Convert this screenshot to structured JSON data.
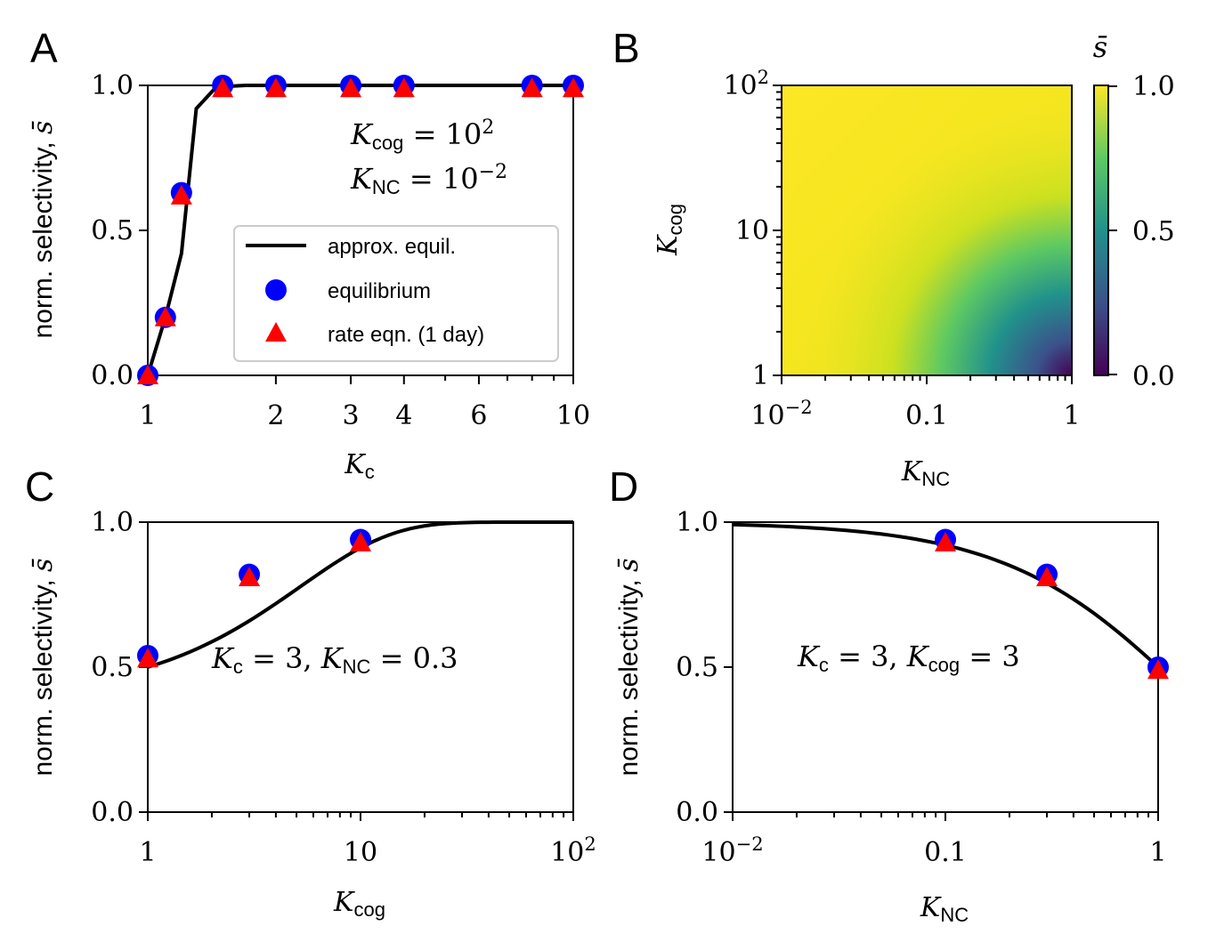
{
  "figure": {
    "panels": [
      "A",
      "B",
      "C",
      "D"
    ]
  },
  "chart_data": [
    {
      "panel": "A",
      "type": "line",
      "xlabel": "K_c",
      "ylabel": "norm. selectivity, s̄",
      "xscale": "log",
      "xlim": [
        1,
        10
      ],
      "ylim": [
        0,
        1
      ],
      "xticks": [
        1,
        2,
        3,
        4,
        6,
        10
      ],
      "xticklabels": [
        "1",
        "2",
        "3",
        "4",
        "6",
        "10"
      ],
      "yticks": [
        0,
        0.5,
        1.0
      ],
      "yticklabels": [
        "0.0",
        "0.5",
        "1.0"
      ],
      "annotations": [
        "K_cog = 10^2",
        "K_NC = 10^−2"
      ],
      "legend_position": "lower-right",
      "series": [
        {
          "name": "approx. equil.",
          "kind": "line",
          "color": "#000000",
          "x": [
            1,
            1.1,
            1.2,
            1.3,
            1.45,
            1.7,
            2,
            3,
            4,
            6,
            8,
            10
          ],
          "y": [
            0,
            0.2,
            0.42,
            0.92,
            0.995,
            1.0,
            1.0,
            1.0,
            1.0,
            1.0,
            1.0,
            1.0
          ]
        },
        {
          "name": "equilibrium",
          "kind": "circle",
          "color": "#0000ff",
          "x": [
            1,
            1.1,
            1.2,
            1.5,
            2,
            3,
            4,
            8,
            10
          ],
          "y": [
            0,
            0.2,
            0.63,
            1.0,
            1.0,
            1.0,
            1.0,
            1.0,
            1.0
          ]
        },
        {
          "name": "rate eqn. (1 day)",
          "kind": "triangle",
          "color": "#ff0000",
          "x": [
            1,
            1.1,
            1.2,
            1.5,
            2,
            3,
            4,
            8,
            10
          ],
          "y": [
            0,
            0.2,
            0.62,
            0.99,
            0.99,
            0.99,
            0.99,
            0.99,
            0.99
          ]
        }
      ]
    },
    {
      "panel": "B",
      "type": "heatmap",
      "xlabel": "K_NC",
      "ylabel": "K_cog",
      "xscale": "log",
      "yscale": "log",
      "xlim": [
        0.01,
        1
      ],
      "ylim": [
        1,
        100
      ],
      "xticklabels": [
        "10^−2",
        "0.1",
        "1"
      ],
      "yticklabels": [
        "1",
        "10",
        "10^2"
      ],
      "colorbar": {
        "label": "s̄",
        "range": [
          0,
          1
        ],
        "ticklabels": [
          "0.0",
          "0.5",
          "1.0"
        ],
        "colormap": "viridis"
      }
    },
    {
      "panel": "C",
      "type": "line",
      "xlabel": "K_cog",
      "ylabel": "norm. selectivity, s̄",
      "xscale": "log",
      "xlim": [
        1,
        100
      ],
      "ylim": [
        0,
        1
      ],
      "xticklabels": [
        "1",
        "10",
        "10^2"
      ],
      "yticklabels": [
        "0.0",
        "0.5",
        "1.0"
      ],
      "annotation": "K_c = 3, K_NC = 0.3",
      "series": [
        {
          "name": "approx. equil.",
          "kind": "curve",
          "color": "#000000"
        },
        {
          "name": "equilibrium",
          "kind": "circle",
          "color": "#0000ff",
          "x": [
            1,
            3,
            10
          ],
          "y": [
            0.54,
            0.82,
            0.94
          ]
        },
        {
          "name": "rate eqn. (1 day)",
          "kind": "triangle",
          "color": "#ff0000",
          "x": [
            1,
            3,
            10
          ],
          "y": [
            0.53,
            0.81,
            0.93
          ]
        }
      ]
    },
    {
      "panel": "D",
      "type": "line",
      "xlabel": "K_NC",
      "ylabel": "norm. selectivity, s̄",
      "xscale": "log",
      "xlim": [
        0.01,
        1
      ],
      "ylim": [
        0,
        1
      ],
      "xticklabels": [
        "10^−2",
        "0.1",
        "1"
      ],
      "yticklabels": [
        "0.0",
        "0.5",
        "1.0"
      ],
      "annotation": "K_c = 3, K_cog = 3",
      "series": [
        {
          "name": "approx. equil.",
          "kind": "curve",
          "color": "#000000"
        },
        {
          "name": "equilibrium",
          "kind": "circle",
          "color": "#0000ff",
          "x": [
            0.1,
            0.3,
            1
          ],
          "y": [
            0.94,
            0.82,
            0.5
          ]
        },
        {
          "name": "rate eqn. (1 day)",
          "kind": "triangle",
          "color": "#ff0000",
          "x": [
            0.1,
            0.3,
            1
          ],
          "y": [
            0.93,
            0.81,
            0.49
          ]
        }
      ]
    }
  ]
}
